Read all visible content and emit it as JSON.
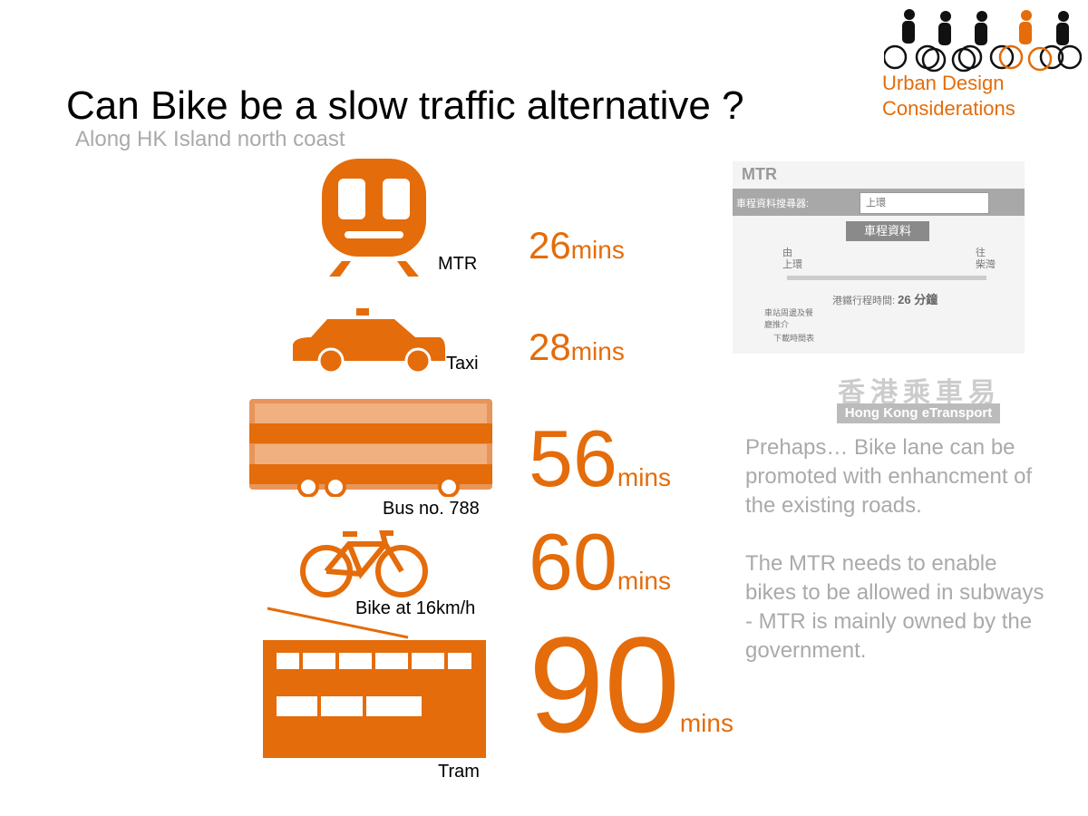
{
  "header": {
    "title": "Can Bike be a slow traffic alternative ?",
    "subtitle": "Along HK Island north coast",
    "brand": "Urban Design Considerations"
  },
  "colors": {
    "accent": "#E46C0A",
    "muted": "#AAAAAA"
  },
  "modes": [
    {
      "label": "MTR",
      "value": "26",
      "unit": "mins",
      "icon": "train-icon"
    },
    {
      "label": "Taxi",
      "value": "28",
      "unit": "mins",
      "icon": "taxi-icon"
    },
    {
      "label": "Bus no. 788",
      "value": "56",
      "unit": "mins",
      "icon": "bus-icon"
    },
    {
      "label": "Bike at 16km/h",
      "value": "60",
      "unit": "mins",
      "icon": "bicycle-icon"
    },
    {
      "label": "Tram",
      "value": "90",
      "unit": "mins",
      "icon": "tram-icon"
    }
  ],
  "mtr_screenshot": {
    "logo": "MTR",
    "search_label": "車程資料搜尋器:",
    "search_value": "上環",
    "button": "車程資料",
    "from_label": "由",
    "from": "上環",
    "to_label": "往",
    "to": "柴灣",
    "journey_time_label": "港鐵行程時間:",
    "journey_time": "26 分鐘",
    "station_info": "車站周邊及餐廳推介",
    "timetable": "下載時間表"
  },
  "etransport": {
    "chinese": "香港乘車易",
    "english": "Hong Kong eTransport"
  },
  "notes": [
    "Prehaps… Bike lane can be promoted with enhancment of the existing roads.",
    "The MTR needs to enable bikes to be allowed in subways - MTR is mainly owned by the government."
  ]
}
